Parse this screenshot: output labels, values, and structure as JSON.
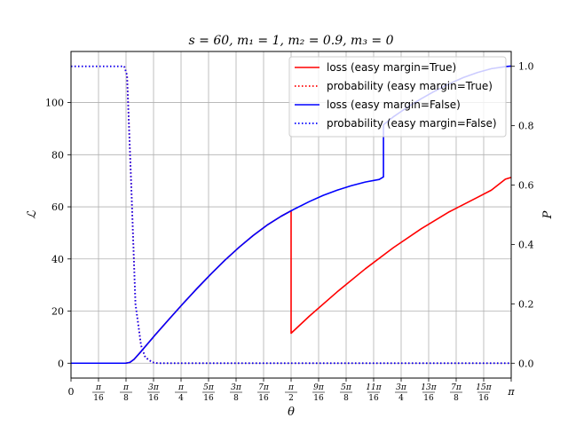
{
  "chart_data": {
    "type": "line",
    "title": "s = 60, m₁ = 1, m₂ = 0.9, m₃ = 0",
    "xlabel": "θ",
    "ylabel_left": "ℒ",
    "ylabel_right": "P",
    "xlim": [
      0,
      3.14159
    ],
    "ylim_left": [
      -5.7,
      119.6
    ],
    "ylim_right": [
      -0.05,
      1.05
    ],
    "x_ticks": [
      {
        "value": 0.0,
        "label": "0"
      },
      {
        "value": 0.19635,
        "label": "π/16"
      },
      {
        "value": 0.3927,
        "label": "π/8"
      },
      {
        "value": 0.58905,
        "label": "3π/16"
      },
      {
        "value": 0.7854,
        "label": "π/4"
      },
      {
        "value": 0.98175,
        "label": "5π/16"
      },
      {
        "value": 1.1781,
        "label": "3π/8"
      },
      {
        "value": 1.37445,
        "label": "7π/16"
      },
      {
        "value": 1.5708,
        "label": "π/2"
      },
      {
        "value": 1.76715,
        "label": "9π/16"
      },
      {
        "value": 1.9635,
        "label": "5π/8"
      },
      {
        "value": 2.15984,
        "label": "11π/16"
      },
      {
        "value": 2.35619,
        "label": "3π/4"
      },
      {
        "value": 2.55254,
        "label": "13π/16"
      },
      {
        "value": 2.74889,
        "label": "7π/8"
      },
      {
        "value": 2.94524,
        "label": "15π/16"
      },
      {
        "value": 3.14159,
        "label": "π"
      }
    ],
    "y_ticks_left": [
      {
        "value": 0,
        "label": "0"
      },
      {
        "value": 20,
        "label": "20"
      },
      {
        "value": 40,
        "label": "40"
      },
      {
        "value": 60,
        "label": "60"
      },
      {
        "value": 80,
        "label": "80"
      },
      {
        "value": 100,
        "label": "100"
      }
    ],
    "y_ticks_right": [
      {
        "value": 0.0,
        "label": "0.0"
      },
      {
        "value": 0.2,
        "label": "0.2"
      },
      {
        "value": 0.4,
        "label": "0.4"
      },
      {
        "value": 0.6,
        "label": "0.6"
      },
      {
        "value": 0.8,
        "label": "0.8"
      },
      {
        "value": 1.0,
        "label": "1.0"
      }
    ],
    "grid": true,
    "legend_position": "top-right",
    "series": [
      {
        "name": "loss (easy margin=True)",
        "color": "#ff0000",
        "style": "solid",
        "axis": "left",
        "points": [
          [
            0.0,
            0.0
          ],
          [
            0.39,
            0.0
          ],
          [
            0.42,
            0.3
          ],
          [
            0.45,
            1.5
          ],
          [
            0.5,
            4.5
          ],
          [
            0.6,
            10.8
          ],
          [
            0.7,
            16.9
          ],
          [
            0.8,
            22.9
          ],
          [
            0.9,
            28.7
          ],
          [
            1.0,
            34.3
          ],
          [
            1.1,
            39.6
          ],
          [
            1.2,
            44.5
          ],
          [
            1.3,
            49.0
          ],
          [
            1.4,
            53.0
          ],
          [
            1.5,
            56.4
          ],
          [
            1.5708,
            58.5
          ],
          [
            1.5708,
            11.5
          ],
          [
            1.7,
            18.0
          ],
          [
            1.9,
            27.4
          ],
          [
            2.1,
            36.2
          ],
          [
            2.3,
            44.3
          ],
          [
            2.5,
            51.6
          ],
          [
            2.7,
            58.1
          ],
          [
            2.9,
            63.6
          ],
          [
            3.0,
            66.4
          ],
          [
            3.1,
            70.6
          ],
          [
            3.14159,
            71.3
          ]
        ]
      },
      {
        "name": "probability (easy margin=True)",
        "color": "#ff0000",
        "style": "dotted",
        "axis": "right",
        "points": [
          [
            0.0,
            1.0
          ],
          [
            0.38,
            1.0
          ],
          [
            0.4,
            0.97
          ],
          [
            0.43,
            0.6
          ],
          [
            0.46,
            0.2
          ],
          [
            0.5,
            0.06
          ],
          [
            0.53,
            0.02
          ],
          [
            0.58,
            0.003
          ],
          [
            0.62,
            0.0
          ],
          [
            3.14159,
            0.0
          ]
        ]
      },
      {
        "name": "loss (easy margin=False)",
        "color": "#0000ff",
        "style": "solid",
        "axis": "left",
        "points": [
          [
            0.0,
            0.0
          ],
          [
            0.39,
            0.0
          ],
          [
            0.42,
            0.3
          ],
          [
            0.45,
            1.5
          ],
          [
            0.5,
            4.5
          ],
          [
            0.6,
            10.8
          ],
          [
            0.7,
            16.9
          ],
          [
            0.8,
            22.9
          ],
          [
            0.9,
            28.7
          ],
          [
            1.0,
            34.3
          ],
          [
            1.1,
            39.6
          ],
          [
            1.2,
            44.5
          ],
          [
            1.3,
            49.0
          ],
          [
            1.4,
            53.0
          ],
          [
            1.5,
            56.4
          ],
          [
            1.6,
            59.3
          ],
          [
            1.7,
            62.0
          ],
          [
            1.8,
            64.4
          ],
          [
            1.9,
            66.4
          ],
          [
            2.0,
            68.1
          ],
          [
            2.1,
            69.5
          ],
          [
            2.2,
            70.5
          ],
          [
            2.23,
            71.5
          ],
          [
            2.23,
            91.5
          ],
          [
            2.3,
            94.5
          ],
          [
            2.4,
            98.2
          ],
          [
            2.5,
            101.5
          ],
          [
            2.6,
            104.5
          ],
          [
            2.7,
            107.2
          ],
          [
            2.8,
            109.6
          ],
          [
            2.9,
            111.5
          ],
          [
            3.0,
            113.0
          ],
          [
            3.1,
            113.8
          ],
          [
            3.14159,
            114.0
          ]
        ]
      },
      {
        "name": "probability (easy margin=False)",
        "color": "#0000ff",
        "style": "dotted",
        "axis": "right",
        "points": [
          [
            0.0,
            1.0
          ],
          [
            0.38,
            1.0
          ],
          [
            0.4,
            0.97
          ],
          [
            0.43,
            0.6
          ],
          [
            0.46,
            0.2
          ],
          [
            0.5,
            0.06
          ],
          [
            0.53,
            0.02
          ],
          [
            0.58,
            0.003
          ],
          [
            0.62,
            0.0
          ],
          [
            3.14159,
            0.0
          ]
        ]
      }
    ]
  }
}
